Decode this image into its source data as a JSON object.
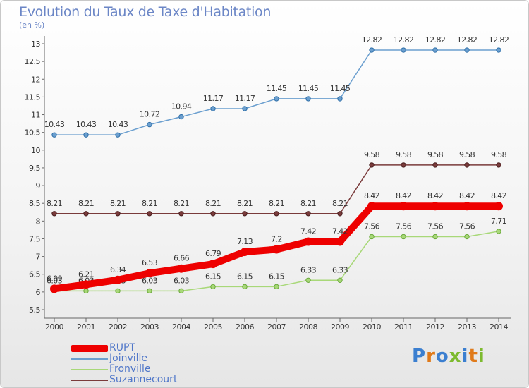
{
  "title": "Evolution du Taux de Taxe d'Habitation",
  "unit": "(en %)",
  "brand": "Proxiti",
  "chart_data": {
    "type": "line",
    "x": [
      "2000",
      "2001",
      "2002",
      "2003",
      "2004",
      "2005",
      "2006",
      "2007",
      "2008",
      "2009",
      "2010",
      "2011",
      "2012",
      "2013",
      "2014"
    ],
    "ylim": [
      5.5,
      13
    ],
    "yticks": [
      "5.5",
      "6",
      "6.5",
      "7",
      "7.5",
      "8",
      "8.5",
      "9",
      "9.5",
      "10",
      "10.5",
      "11",
      "11.5",
      "12",
      "12.5",
      "13"
    ],
    "grid": false,
    "legend_position": "bottom-left",
    "series": [
      {
        "name": "RUPT",
        "color": "#ee0000",
        "values": [
          6.09,
          6.21,
          6.34,
          6.53,
          6.66,
          6.79,
          7.13,
          7.2,
          7.42,
          7.42,
          8.42,
          8.42,
          8.42,
          8.42,
          8.42
        ],
        "labels": [
          "6.09",
          "6.21",
          "6.34",
          "6.53",
          "6.66",
          "6.79",
          "7.13",
          "7.2",
          "7.42",
          "7.42",
          "8.42",
          "8.42",
          "8.42",
          "8.42",
          "8.42"
        ]
      },
      {
        "name": "Joinville",
        "color": "#6b9fcf",
        "values": [
          10.43,
          10.43,
          10.43,
          10.72,
          10.94,
          11.17,
          11.17,
          11.45,
          11.45,
          11.45,
          12.82,
          12.82,
          12.82,
          12.82,
          12.82
        ],
        "labels": [
          "10.43",
          "10.43",
          "10.43",
          "10.72",
          "10.94",
          "11.17",
          "11.17",
          "11.45",
          "11.45",
          "11.45",
          "12.82",
          "12.82",
          "12.82",
          "12.82",
          "12.82"
        ]
      },
      {
        "name": "Fronville",
        "color": "#a8d878",
        "values": [
          6.03,
          6.03,
          6.03,
          6.03,
          6.03,
          6.15,
          6.15,
          6.15,
          6.33,
          6.33,
          7.56,
          7.56,
          7.56,
          7.56,
          7.71
        ],
        "labels": [
          "6.03",
          "6.03",
          "6.03",
          "6.03",
          "6.03",
          "6.15",
          "6.15",
          "6.15",
          "6.33",
          "6.33",
          "7.56",
          "7.56",
          "7.56",
          "7.56",
          "7.71"
        ]
      },
      {
        "name": "Suzannecourt",
        "color": "#7a3b3b",
        "values": [
          8.21,
          8.21,
          8.21,
          8.21,
          8.21,
          8.21,
          8.21,
          8.21,
          8.21,
          8.21,
          9.58,
          9.58,
          9.58,
          9.58,
          9.58
        ],
        "labels": [
          "8.21",
          "8.21",
          "8.21",
          "8.21",
          "8.21",
          "8.21",
          "8.21",
          "8.21",
          "8.21",
          "8.21",
          "9.58",
          "9.58",
          "9.58",
          "9.58",
          "9.58"
        ]
      }
    ]
  }
}
